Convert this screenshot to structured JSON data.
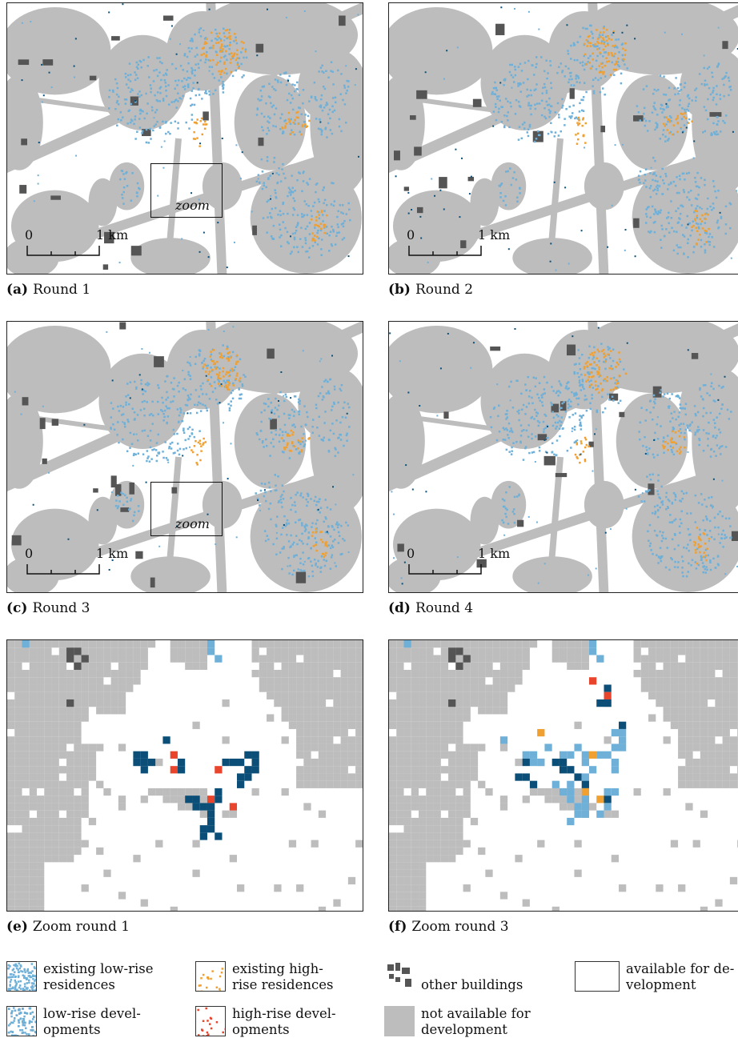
{
  "panels": [
    {
      "id": "a",
      "letter": "(a)",
      "title": "Round 1",
      "zoom": true
    },
    {
      "id": "b",
      "letter": "(b)",
      "title": "Round 2",
      "zoom": false
    },
    {
      "id": "c",
      "letter": "(c)",
      "title": "Round 3",
      "zoom": true
    },
    {
      "id": "d",
      "letter": "(d)",
      "title": "Round 4",
      "zoom": false
    },
    {
      "id": "e",
      "letter": "(e)",
      "title": "Zoom round 1"
    },
    {
      "id": "f",
      "letter": "(f)",
      "title": "Zoom round 3"
    }
  ],
  "zoom_label": "zoom",
  "scale": {
    "start": "0",
    "end": "1 km"
  },
  "legend": {
    "low_existing": [
      "existing low-rise",
      "residences"
    ],
    "high_existing": [
      "existing high-",
      "rise residences"
    ],
    "other": "other buildings",
    "available": [
      "available for de-",
      "velopment"
    ],
    "low_dev": [
      "low-rise devel-",
      "opments"
    ],
    "high_dev": [
      "high-rise devel-",
      "opments"
    ],
    "not_available": [
      "not available for",
      "development"
    ]
  },
  "colors": {
    "not_available": "#bdbdbd",
    "available": "#ffffff",
    "other": "#555555",
    "low_existing": "#6fb0d8",
    "high_existing": "#f0a030",
    "low_dev": "#0b4f78",
    "high_dev": "#e8452c"
  }
}
